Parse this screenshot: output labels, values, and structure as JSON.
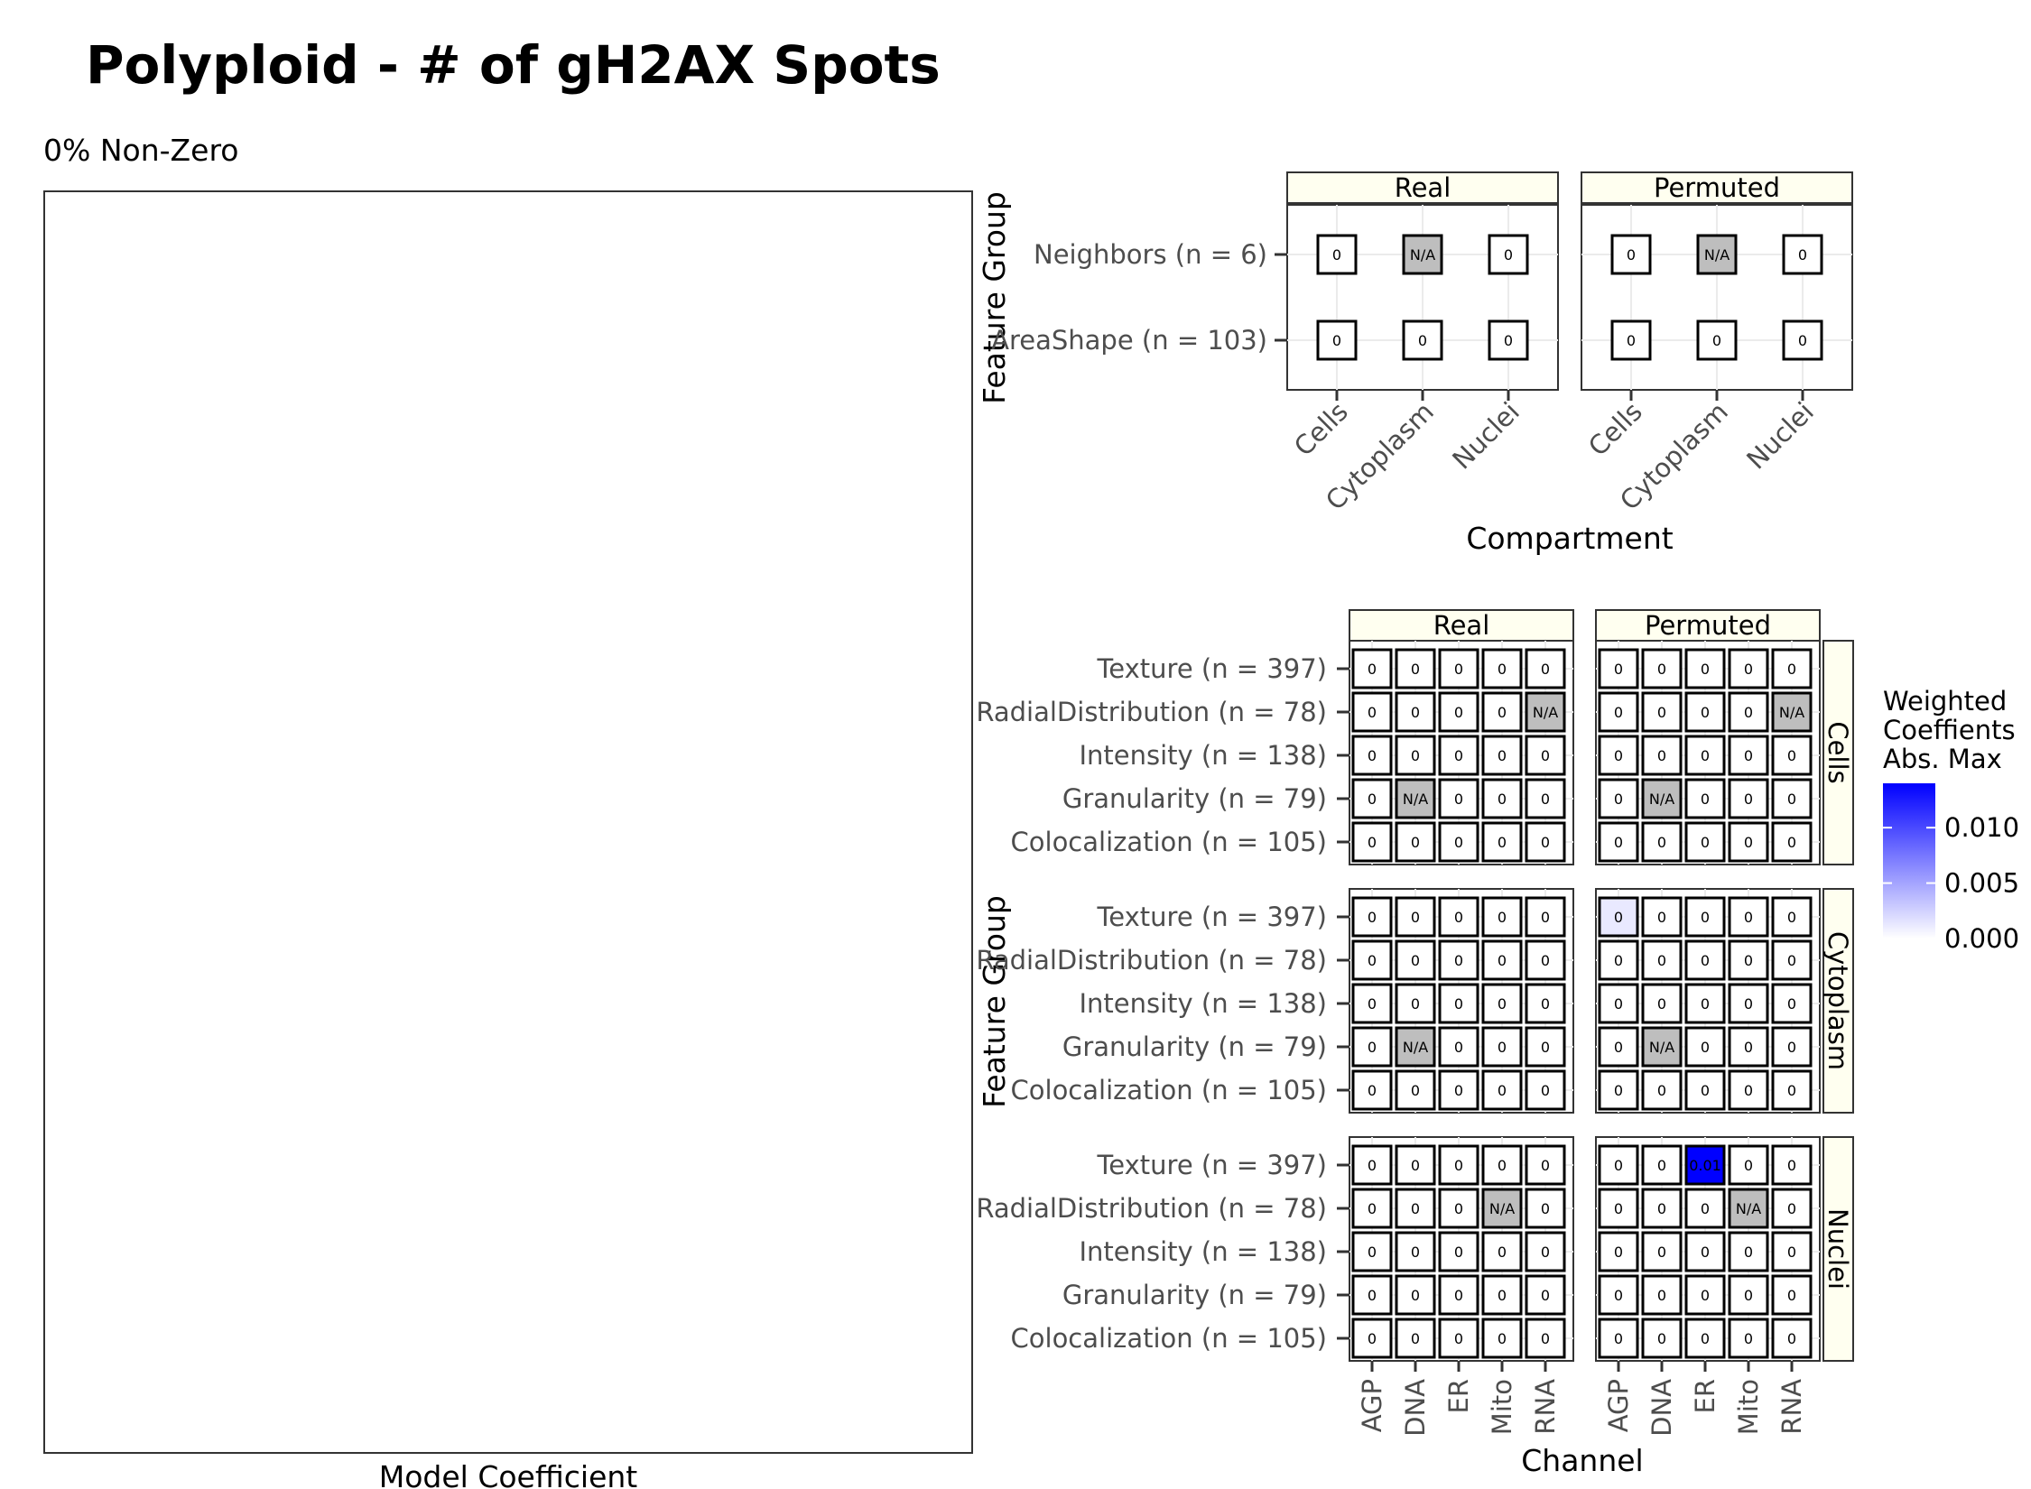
{
  "title": "Polyploid - # of gH2AX Spots",
  "chart_data": [
    {
      "type": "scatter",
      "subtitle": "0% Non-Zero",
      "xlabel": "Model Coefficient",
      "ylabel": "",
      "points": []
    },
    {
      "type": "heatmap",
      "xlabel": "Compartment",
      "ylabel": "Feature Group",
      "x_categories": [
        "Cells",
        "Cytoplasm",
        "Nuclei"
      ],
      "y_categories": [
        "Neighbors (n = 6)",
        "AreaShape (n = 103)"
      ],
      "facets": [
        {
          "name": "Real",
          "values": [
            [
              "0",
              "N/A",
              "0"
            ],
            [
              "0",
              "0",
              "0"
            ]
          ]
        },
        {
          "name": "Permuted",
          "values": [
            [
              "0",
              "N/A",
              "0"
            ],
            [
              "0",
              "0",
              "0"
            ]
          ]
        }
      ]
    },
    {
      "type": "heatmap",
      "xlabel": "Channel",
      "ylabel": "Feature Group",
      "x_categories": [
        "AGP",
        "DNA",
        "ER",
        "Mito",
        "RNA"
      ],
      "y_categories": [
        "Texture (n = 397)",
        "RadialDistribution (n = 78)",
        "Intensity (n = 138)",
        "Granularity (n = 79)",
        "Colocalization (n = 105)"
      ],
      "col_facets": [
        "Real",
        "Permuted"
      ],
      "row_facets": [
        "Cells",
        "Cytoplasm",
        "Nuclei"
      ],
      "panels": [
        {
          "row": "Cells",
          "col": "Real",
          "labels": [
            [
              "0",
              "0",
              "0",
              "0",
              "0"
            ],
            [
              "0",
              "0",
              "0",
              "0",
              "N/A"
            ],
            [
              "0",
              "0",
              "0",
              "0",
              "0"
            ],
            [
              "0",
              "N/A",
              "0",
              "0",
              "0"
            ],
            [
              "0",
              "0",
              "0",
              "0",
              "0"
            ]
          ],
          "fill": [
            [
              0,
              0,
              0,
              0,
              0
            ],
            [
              0,
              0,
              0,
              0,
              null
            ],
            [
              0,
              0,
              0,
              0,
              0
            ],
            [
              0,
              null,
              0,
              0,
              0
            ],
            [
              0,
              0,
              0,
              0,
              0
            ]
          ]
        },
        {
          "row": "Cells",
          "col": "Permuted",
          "labels": [
            [
              "0",
              "0",
              "0",
              "0",
              "0"
            ],
            [
              "0",
              "0",
              "0",
              "0",
              "N/A"
            ],
            [
              "0",
              "0",
              "0",
              "0",
              "0"
            ],
            [
              "0",
              "N/A",
              "0",
              "0",
              "0"
            ],
            [
              "0",
              "0",
              "0",
              "0",
              "0"
            ]
          ],
          "fill": [
            [
              0,
              0,
              0,
              0,
              0
            ],
            [
              0,
              0,
              0,
              0,
              null
            ],
            [
              0,
              0,
              0,
              0,
              0
            ],
            [
              0,
              null,
              0,
              0,
              0
            ],
            [
              0,
              0,
              0,
              0,
              0
            ]
          ]
        },
        {
          "row": "Cytoplasm",
          "col": "Real",
          "labels": [
            [
              "0",
              "0",
              "0",
              "0",
              "0"
            ],
            [
              "0",
              "0",
              "0",
              "0",
              "0"
            ],
            [
              "0",
              "0",
              "0",
              "0",
              "0"
            ],
            [
              "0",
              "N/A",
              "0",
              "0",
              "0"
            ],
            [
              "0",
              "0",
              "0",
              "0",
              "0"
            ]
          ],
          "fill": [
            [
              0,
              0,
              0,
              0,
              0
            ],
            [
              0,
              0,
              0,
              0,
              0
            ],
            [
              0,
              0,
              0,
              0,
              0
            ],
            [
              0,
              null,
              0,
              0,
              0
            ],
            [
              0,
              0,
              0,
              0,
              0
            ]
          ]
        },
        {
          "row": "Cytoplasm",
          "col": "Permuted",
          "labels": [
            [
              "0",
              "0",
              "0",
              "0",
              "0"
            ],
            [
              "0",
              "0",
              "0",
              "0",
              "0"
            ],
            [
              "0",
              "0",
              "0",
              "0",
              "0"
            ],
            [
              "0",
              "N/A",
              "0",
              "0",
              "0"
            ],
            [
              "0",
              "0",
              "0",
              "0",
              "0"
            ]
          ],
          "fill": [
            [
              0.0012,
              0,
              0,
              0,
              0
            ],
            [
              0,
              0,
              0,
              0,
              0
            ],
            [
              0,
              0,
              0,
              0,
              0
            ],
            [
              0,
              null,
              0,
              0,
              0
            ],
            [
              0,
              0,
              0,
              0,
              0
            ]
          ]
        },
        {
          "row": "Nuclei",
          "col": "Real",
          "labels": [
            [
              "0",
              "0",
              "0",
              "0",
              "0"
            ],
            [
              "0",
              "0",
              "0",
              "N/A",
              "0"
            ],
            [
              "0",
              "0",
              "0",
              "0",
              "0"
            ],
            [
              "0",
              "0",
              "0",
              "0",
              "0"
            ],
            [
              "0",
              "0",
              "0",
              "0",
              "0"
            ]
          ],
          "fill": [
            [
              0,
              0,
              0,
              0,
              0
            ],
            [
              0,
              0,
              0,
              null,
              0
            ],
            [
              0,
              0,
              0,
              0,
              0
            ],
            [
              0,
              0,
              0,
              0,
              0
            ],
            [
              0,
              0,
              0,
              0,
              0
            ]
          ]
        },
        {
          "row": "Nuclei",
          "col": "Permuted",
          "labels": [
            [
              "0",
              "0",
              "0.01",
              "0",
              "0"
            ],
            [
              "0",
              "0",
              "0",
              "N/A",
              "0"
            ],
            [
              "0",
              "0",
              "0",
              "0",
              "0"
            ],
            [
              "0",
              "0",
              "0",
              "0",
              "0"
            ],
            [
              "0",
              "0",
              "0",
              "0",
              "0"
            ]
          ],
          "fill": [
            [
              0,
              0,
              0.014,
              0,
              0
            ],
            [
              0,
              0,
              0,
              null,
              0
            ],
            [
              0,
              0,
              0,
              0,
              0
            ],
            [
              0,
              0,
              0,
              0,
              0
            ],
            [
              0,
              0,
              0,
              0,
              0
            ]
          ]
        }
      ]
    }
  ],
  "legend": {
    "title": [
      "Weighted",
      "Coeffients",
      "Abs. Max"
    ],
    "ticks": [
      {
        "value": 0.01,
        "label": "0.010"
      },
      {
        "value": 0.005,
        "label": "0.005"
      },
      {
        "value": 0.0,
        "label": "0.000"
      }
    ],
    "range": [
      0,
      0.014
    ],
    "low_color": "#ffffff",
    "high_color": "#0000ff"
  },
  "colors": {
    "na_fill": "#bebebe",
    "strip_fill": "#fffff0",
    "grid": "#ebebeb"
  }
}
